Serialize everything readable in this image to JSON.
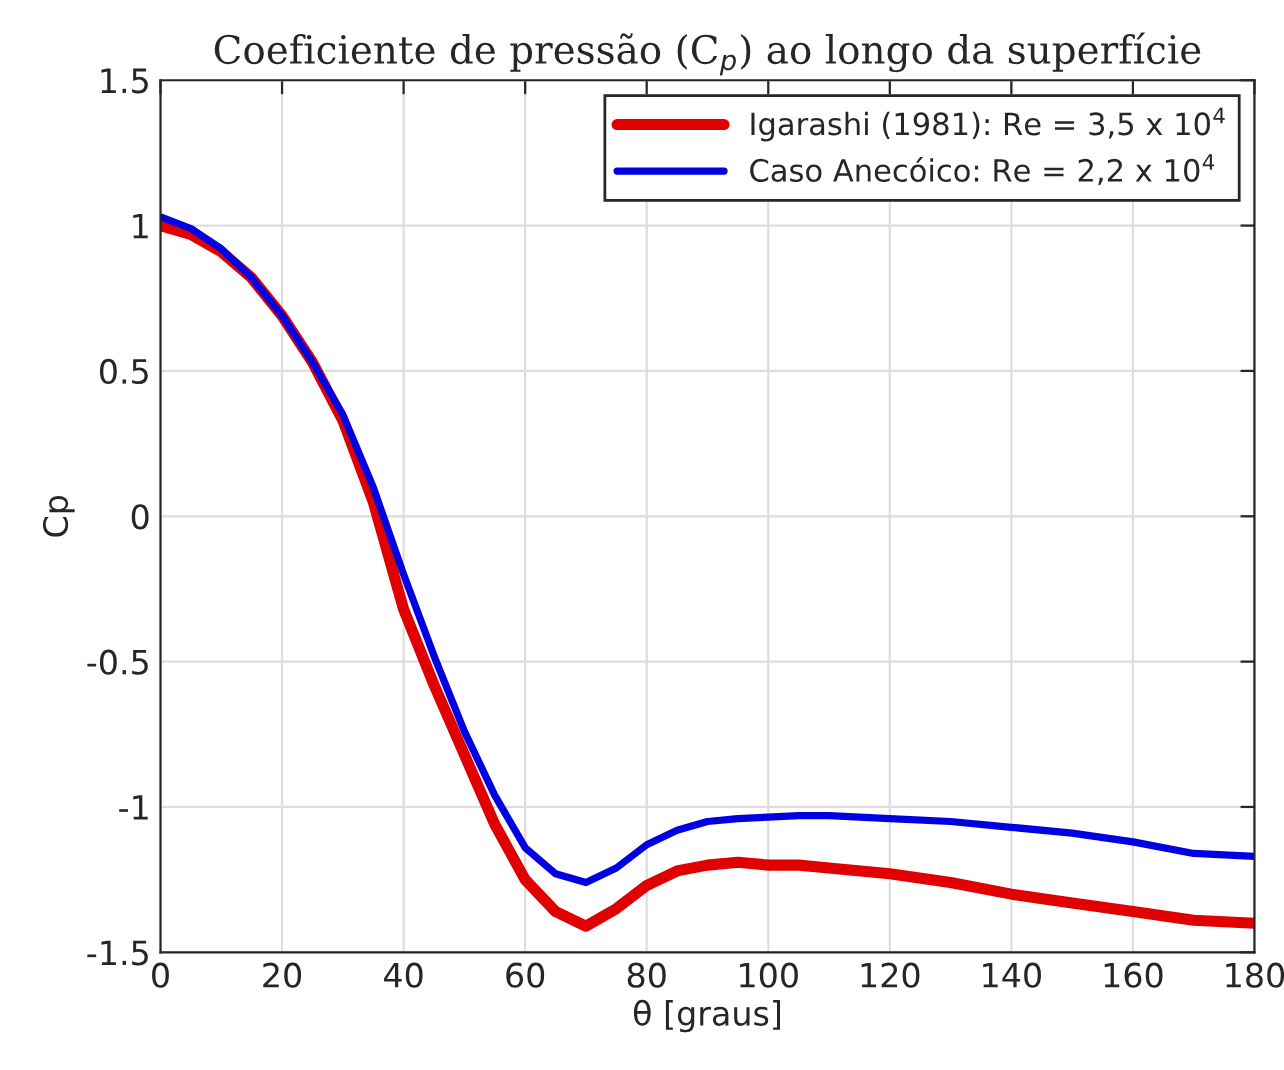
{
  "chart_data": {
    "type": "line",
    "title": "Coeficiente de pressão (C$_{p}$) ao longo da superfície",
    "xlabel": "θ [graus]",
    "ylabel": "Cp",
    "x": [
      0,
      5,
      10,
      15,
      20,
      25,
      30,
      35,
      40,
      45,
      50,
      55,
      60,
      65,
      70,
      75,
      80,
      85,
      90,
      95,
      100,
      105,
      110,
      120,
      130,
      140,
      150,
      160,
      170,
      180
    ],
    "series": [
      {
        "name": "Igarashi (1981): Re = 3,5 x 10$^{4}$",
        "color": "#e00000",
        "values": [
          1.0,
          0.97,
          0.91,
          0.82,
          0.69,
          0.53,
          0.33,
          0.05,
          -0.32,
          -0.58,
          -0.82,
          -1.06,
          -1.25,
          -1.36,
          -1.41,
          -1.35,
          -1.27,
          -1.22,
          -1.2,
          -1.19,
          -1.2,
          -1.2,
          -1.21,
          -1.23,
          -1.26,
          -1.3,
          -1.33,
          -1.36,
          -1.39,
          -1.4
        ]
      },
      {
        "name": "Caso Anecóico: Re = 2,2 x 10$^{4}$",
        "color": "#0000e0",
        "values": [
          1.03,
          0.99,
          0.92,
          0.82,
          0.69,
          0.53,
          0.35,
          0.1,
          -0.2,
          -0.48,
          -0.74,
          -0.96,
          -1.14,
          -1.23,
          -1.26,
          -1.21,
          -1.13,
          -1.08,
          -1.05,
          -1.04,
          -1.035,
          -1.03,
          -1.03,
          -1.04,
          -1.05,
          -1.07,
          -1.09,
          -1.12,
          -1.16,
          -1.17
        ]
      }
    ],
    "xlim": [
      0,
      180
    ],
    "xticks": [
      0,
      20,
      40,
      60,
      80,
      100,
      120,
      140,
      160,
      180
    ],
    "ylim": [
      -1.5,
      1.5
    ],
    "yticks": [
      -1.5,
      -1,
      -0.5,
      0,
      0.5,
      1,
      1.5
    ],
    "grid": true,
    "legend": "top right",
    "line_style": "solid",
    "marker": "none"
  }
}
